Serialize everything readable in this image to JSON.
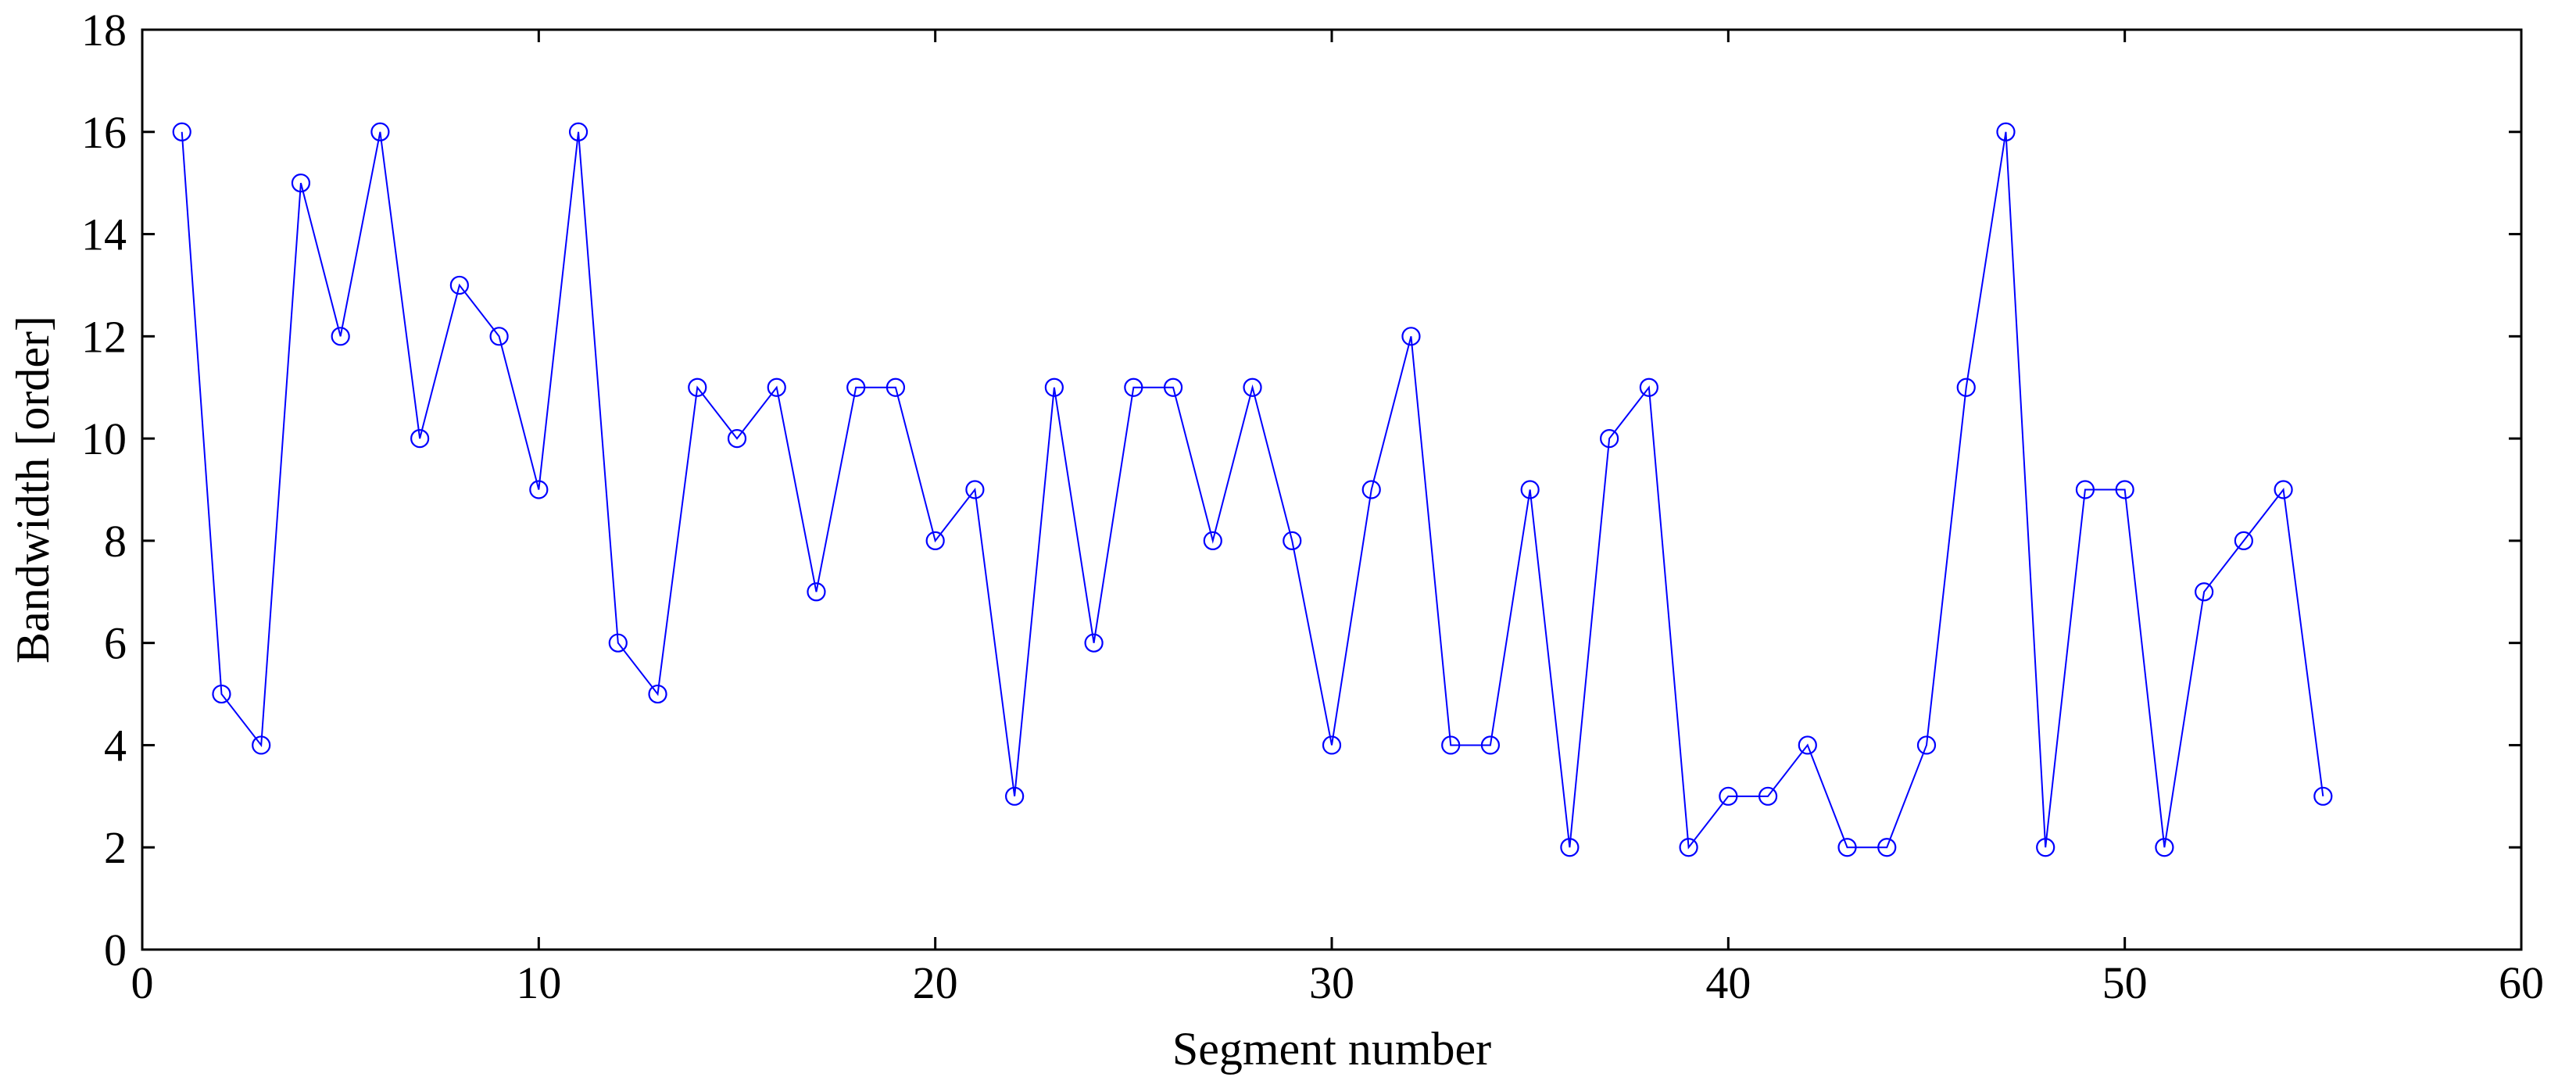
{
  "chart_data": {
    "type": "line",
    "xlabel": "Segment number",
    "ylabel": "Bandwidth [order]",
    "xlim": [
      0,
      60
    ],
    "ylim": [
      0,
      18
    ],
    "xticks": [
      "0",
      "10",
      "20",
      "30",
      "40",
      "50",
      "60"
    ],
    "yticks": [
      "0",
      "2",
      "4",
      "6",
      "8",
      "10",
      "12",
      "14",
      "16",
      "18"
    ],
    "grid": false,
    "legend": "none",
    "colors": {
      "series": "#0000ff",
      "axes": "#000000",
      "background": "#ffffff"
    },
    "series": [
      {
        "marker": "circle-open",
        "x": [
          1,
          2,
          3,
          4,
          5,
          6,
          7,
          8,
          9,
          10,
          11,
          12,
          13,
          14,
          15,
          16,
          17,
          18,
          19,
          20,
          21,
          22,
          23,
          24,
          25,
          26,
          27,
          28,
          29,
          30,
          31,
          32,
          33,
          34,
          35,
          36,
          37,
          38,
          39,
          40,
          41,
          42,
          43,
          44,
          45,
          46,
          47,
          48,
          49,
          50,
          51,
          52,
          53,
          54,
          55
        ],
        "values": [
          16,
          5,
          4,
          15,
          12,
          16,
          10,
          13,
          12,
          9,
          16,
          6,
          5,
          11,
          10,
          11,
          7,
          11,
          11,
          8,
          9,
          3,
          11,
          6,
          11,
          11,
          8,
          11,
          8,
          4,
          9,
          12,
          4,
          4,
          9,
          2,
          10,
          11,
          2,
          3,
          3,
          4,
          2,
          2,
          4,
          11,
          16,
          2,
          9,
          9,
          2,
          7,
          8,
          9,
          3
        ]
      }
    ]
  }
}
